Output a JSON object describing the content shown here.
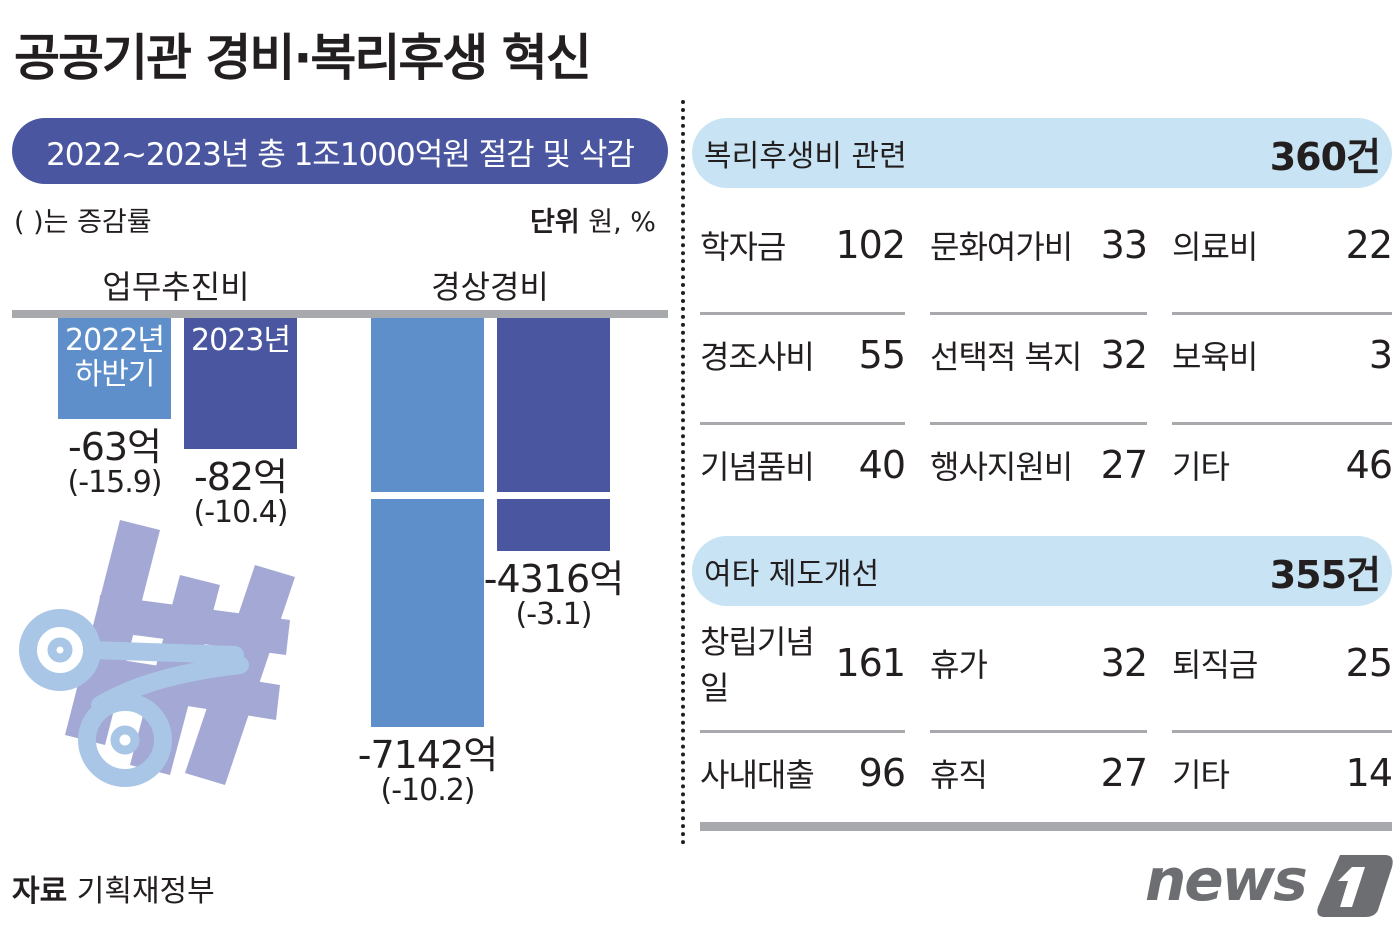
{
  "title": "공공기관 경비·복리후생 혁신",
  "banner": "2022~2023년 총 1조1000억원 절감 및 삭감",
  "note": "( )는 증감률",
  "unit_label": "단위",
  "unit_value": "원, %",
  "colors": {
    "light_bar": "#5f8fca",
    "dark_bar": "#4a56a0",
    "pill": "#c8e3f3",
    "gray": "#a7a9ac"
  },
  "chart_data": {
    "type": "bar",
    "title": "2022~2023년 총 1조1000억원 절감 및 삭감",
    "groups": [
      {
        "name": "업무추진비",
        "bars": [
          {
            "label": "2022년 하반기",
            "value": -63,
            "value_label": "-63억",
            "rate_label": "(-15.9)"
          },
          {
            "label": "2023년",
            "value": -82,
            "value_label": "-82억",
            "rate_label": "(-10.4)"
          }
        ]
      },
      {
        "name": "경상경비",
        "bars": [
          {
            "label": "2022년 하반기",
            "value": -7142,
            "value_label": "-7142억",
            "rate_label": "(-10.2)"
          },
          {
            "label": "2023년",
            "value": -4316,
            "value_label": "-4316억",
            "rate_label": "(-3.1)"
          }
        ]
      }
    ],
    "unit": "억원"
  },
  "sections": [
    {
      "title": "복리후생비 관련",
      "count": "360건",
      "items": [
        {
          "name": "학자금",
          "value": "102"
        },
        {
          "name": "문화여가비",
          "value": "33"
        },
        {
          "name": "의료비",
          "value": "22"
        },
        {
          "name": "경조사비",
          "value": "55"
        },
        {
          "name": "선택적 복지",
          "value": "32"
        },
        {
          "name": "보육비",
          "value": "3"
        },
        {
          "name": "기념품비",
          "value": "40"
        },
        {
          "name": "행사지원비",
          "value": "27"
        },
        {
          "name": "기타",
          "value": "46"
        }
      ]
    },
    {
      "title": "여타 제도개선",
      "count": "355건",
      "items": [
        {
          "name": "창립기념일",
          "value": "161"
        },
        {
          "name": "휴가",
          "value": "32"
        },
        {
          "name": "퇴직금",
          "value": "25"
        },
        {
          "name": "사내대출",
          "value": "96"
        },
        {
          "name": "휴직",
          "value": "27"
        },
        {
          "name": "기타",
          "value": "14"
        }
      ]
    }
  ],
  "source_label": "자료",
  "source": "기획재정부",
  "logo": "news1"
}
